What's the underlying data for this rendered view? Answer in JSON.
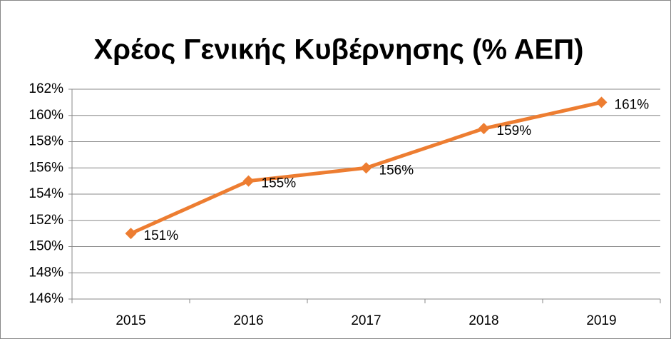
{
  "chart_data": {
    "type": "line",
    "title": "Χρέος Γενικής Κυβέρνησης (% ΑΕΠ)",
    "categories": [
      "2015",
      "2016",
      "2017",
      "2018",
      "2019"
    ],
    "series": [
      {
        "name": "Χρέος",
        "color": "#ed7d31",
        "values": [
          151,
          155,
          156,
          159,
          161
        ],
        "value_labels": [
          "151%",
          "155%",
          "156%",
          "159%",
          "161%"
        ]
      }
    ],
    "ylim": [
      146,
      162
    ],
    "yticks": [
      {
        "value": 146,
        "label": "146%"
      },
      {
        "value": 148,
        "label": "148%"
      },
      {
        "value": 150,
        "label": "150%"
      },
      {
        "value": 152,
        "label": "152%"
      },
      {
        "value": 154,
        "label": "154%"
      },
      {
        "value": 156,
        "label": "156%"
      },
      {
        "value": 158,
        "label": "158%"
      },
      {
        "value": 160,
        "label": "160%"
      },
      {
        "value": 162,
        "label": "162%"
      }
    ],
    "grid": true
  }
}
